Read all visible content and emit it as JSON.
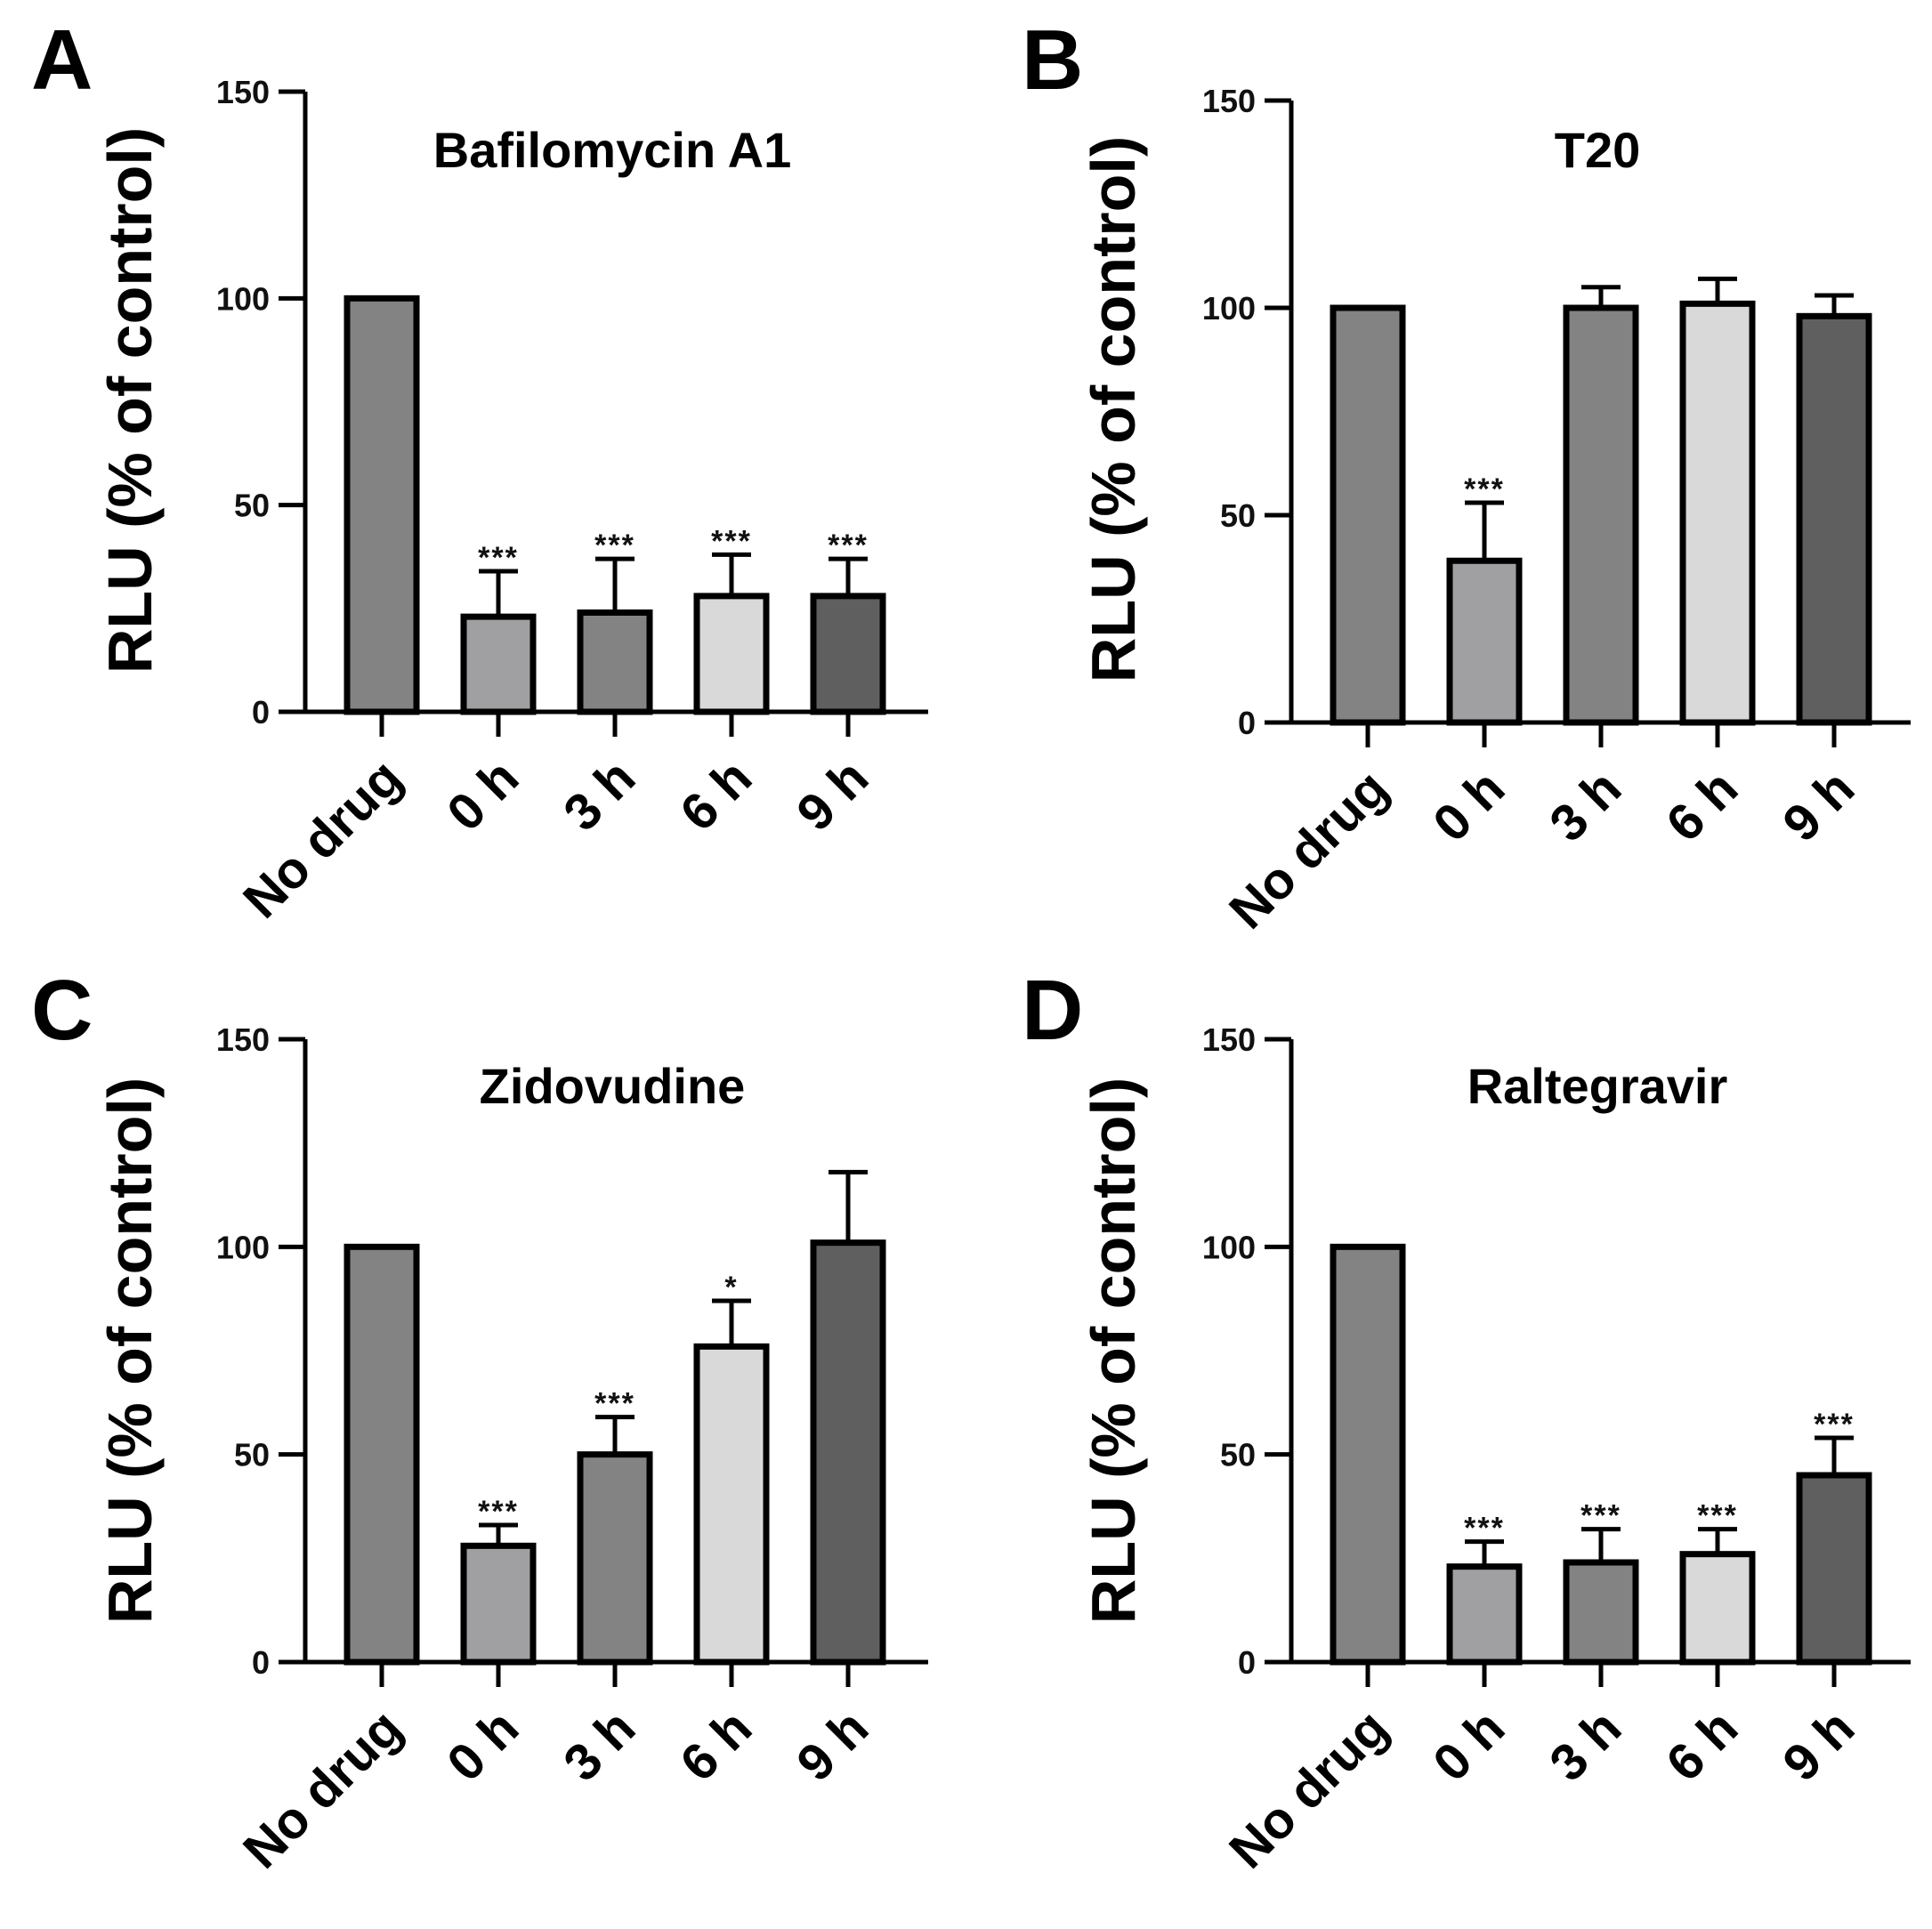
{
  "colors": {
    "bar_no_drug": "#838383",
    "bar_0h": "#a0a0a2",
    "bar_3h": "#838383",
    "bar_6h": "#d9d9d9",
    "bar_9h": "#5f5f5f"
  },
  "chart_data": [
    {
      "panel": "A",
      "type": "bar",
      "title": "Bafilomycin A1",
      "ylabel": "RLU (% of control)",
      "xlabel": "",
      "ylim": [
        0,
        150
      ],
      "yticks": [
        "0",
        "50",
        "100",
        "150"
      ],
      "categories": [
        "No drug",
        "0 h",
        "3 h",
        "6 h",
        "9 h"
      ],
      "values": [
        100,
        23,
        24,
        28,
        28
      ],
      "errors": [
        0,
        11,
        13,
        10,
        9
      ],
      "significance": [
        "",
        "***",
        "***",
        "***",
        "***"
      ]
    },
    {
      "panel": "B",
      "type": "bar",
      "title": "T20",
      "ylabel": "RLU (% of control)",
      "xlabel": "",
      "ylim": [
        0,
        150
      ],
      "yticks": [
        "0",
        "50",
        "100",
        "150"
      ],
      "categories": [
        "No drug",
        "0 h",
        "3 h",
        "6 h",
        "9 h"
      ],
      "values": [
        100,
        39,
        100,
        101,
        98
      ],
      "errors": [
        0,
        14,
        5,
        6,
        5
      ],
      "significance": [
        "",
        "***",
        "",
        "",
        ""
      ]
    },
    {
      "panel": "C",
      "type": "bar",
      "title": "Zidovudine",
      "ylabel": "RLU (% of control)",
      "xlabel": "",
      "ylim": [
        0,
        150
      ],
      "yticks": [
        "0",
        "50",
        "100",
        "150"
      ],
      "categories": [
        "No drug",
        "0 h",
        "3 h",
        "6 h",
        "9 h"
      ],
      "values": [
        100,
        28,
        50,
        76,
        101
      ],
      "errors": [
        0,
        5,
        9,
        11,
        17
      ],
      "significance": [
        "",
        "***",
        "***",
        "*",
        ""
      ]
    },
    {
      "panel": "D",
      "type": "bar",
      "title": "Raltegravir",
      "ylabel": "RLU (% of control)",
      "xlabel": "",
      "ylim": [
        0,
        150
      ],
      "yticks": [
        "0",
        "50",
        "100",
        "150"
      ],
      "categories": [
        "No drug",
        "0 h",
        "3 h",
        "6 h",
        "9 h"
      ],
      "values": [
        100,
        23,
        24,
        26,
        45
      ],
      "errors": [
        0,
        6,
        8,
        6,
        9
      ],
      "significance": [
        "",
        "***",
        "***",
        "***",
        "***"
      ]
    }
  ]
}
